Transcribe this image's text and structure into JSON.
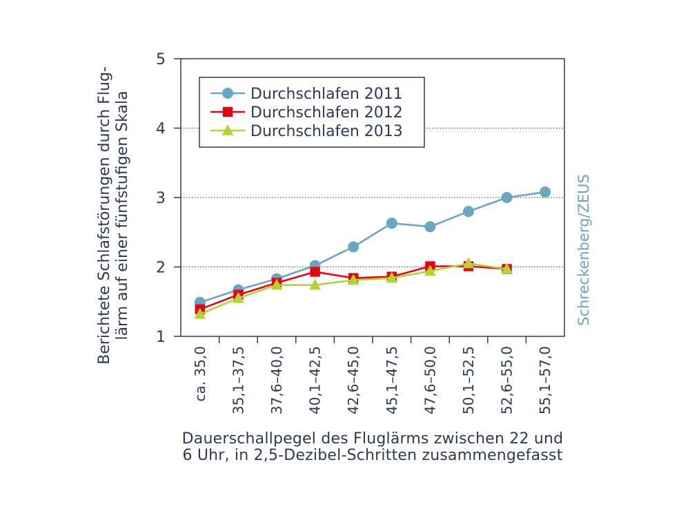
{
  "chart_data": {
    "type": "line",
    "categories": [
      "ca. 35,0",
      "35,1–37,5",
      "37,6–40,0",
      "40,1–42,5",
      "42,6–45,0",
      "45,1–47,5",
      "47,6–50,0",
      "50,1–52,5",
      "52,6–55,0",
      "55,1–57,0"
    ],
    "ylim": [
      1,
      5
    ],
    "yticks": [
      1,
      2,
      3,
      4,
      5
    ],
    "gridlines": [
      2,
      3,
      4
    ],
    "ylabel_line1": "Berichtete Schlafstörungen durch Flug-",
    "ylabel_line2": "lärm auf einer fünfstufigen Skala",
    "xlabel_line1": "Dauerschallpegel des Fluglärms zwischen 22 und",
    "xlabel_line2": "6 Uhr, in 2,5-Dezibel-Schritten zusammengefasst",
    "credit": "Schreckenberg/ZEUS",
    "legend_position": "top-left",
    "series": [
      {
        "name": "Durchschlafen 2011",
        "color": "#6aa5c2",
        "marker": "circle",
        "values": [
          1.49,
          1.67,
          1.83,
          2.02,
          2.29,
          2.63,
          2.58,
          2.8,
          3.0,
          3.08
        ]
      },
      {
        "name": "Durchschlafen 2012",
        "color": "#e30613",
        "marker": "square",
        "values": [
          1.39,
          1.6,
          1.77,
          1.93,
          1.84,
          1.86,
          2.01,
          2.01,
          1.97,
          null
        ]
      },
      {
        "name": "Durchschlafen 2013",
        "color": "#b5d334",
        "marker": "triangle",
        "values": [
          1.32,
          1.55,
          1.74,
          1.74,
          1.81,
          1.84,
          1.94,
          2.05,
          1.97,
          null
        ]
      }
    ]
  }
}
